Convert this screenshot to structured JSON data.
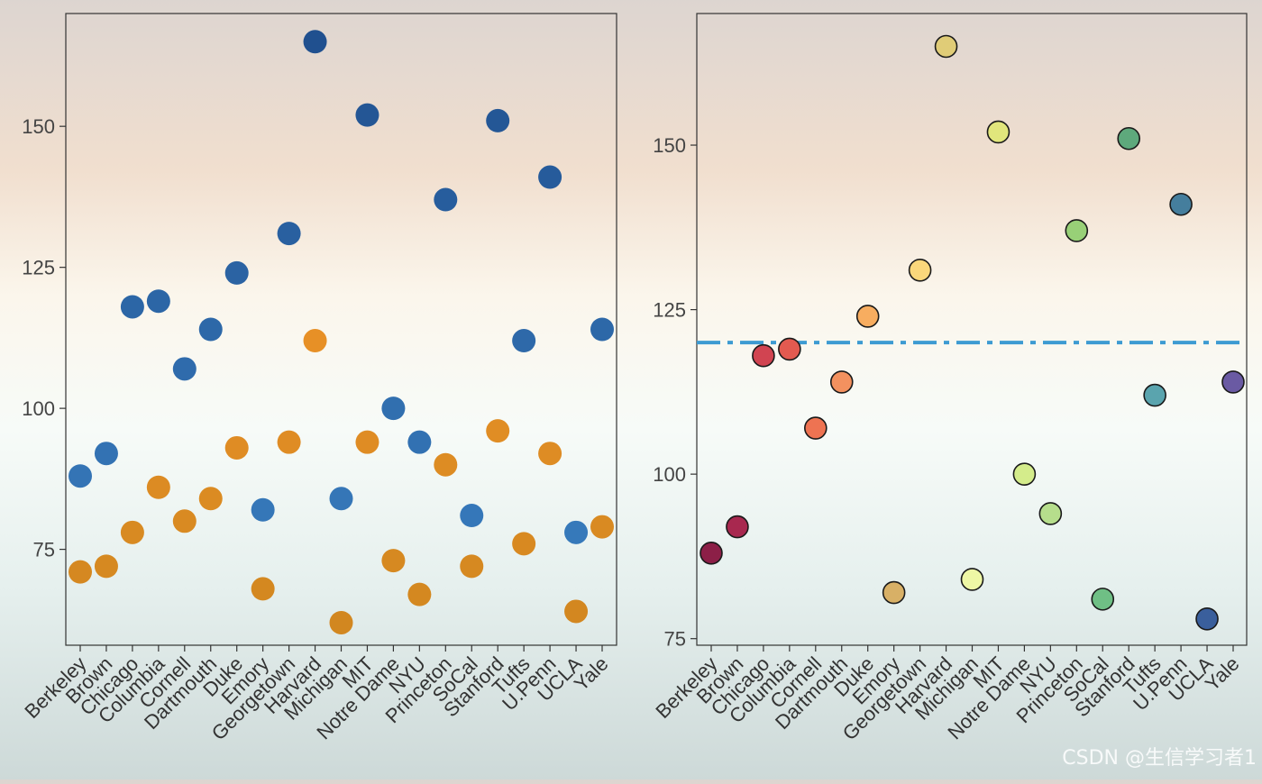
{
  "chart_data": [
    {
      "type": "dumbbell",
      "categories": [
        "Berkeley",
        "Brown",
        "Chicago",
        "Columbia",
        "Cornell",
        "Dartmouth",
        "Duke",
        "Emory",
        "Georgetown",
        "Harvard",
        "Michigan",
        "MIT",
        "Notre Dame",
        "NYU",
        "Princeton",
        "SoCal",
        "Stanford",
        "Tufts",
        "U.Penn",
        "UCLA",
        "Yale"
      ],
      "series": [
        {
          "name": "",
          "color": "#f39a2b",
          "values": [
            71,
            72,
            78,
            86,
            80,
            84,
            93,
            68,
            94,
            112,
            62,
            94,
            73,
            67,
            90,
            72,
            96,
            76,
            92,
            64,
            79
          ]
        },
        {
          "name": "",
          "color": "#3a6fb0",
          "values": [
            88,
            92,
            118,
            119,
            107,
            114,
            124,
            82,
            131,
            165,
            84,
            152,
            100,
            94,
            137,
            81,
            151,
            112,
            141,
            78,
            114
          ]
        }
      ],
      "ylim": [
        58,
        170
      ],
      "yticks": [
        75,
        100,
        125,
        150
      ],
      "ytick_labels": [
        "75",
        "100",
        "125",
        "150"
      ],
      "xlabel": "",
      "ylabel": "",
      "grid": false,
      "legend": "none"
    },
    {
      "type": "lollipop",
      "categories": [
        "Berkeley",
        "Brown",
        "Chicago",
        "Columbia",
        "Cornell",
        "Dartmouth",
        "Duke",
        "Emory",
        "Georgetown",
        "Harvard",
        "Michigan",
        "MIT",
        "Notre Dame",
        "NYU",
        "Princeton",
        "SoCal",
        "Stanford",
        "Tufts",
        "U.Penn",
        "UCLA",
        "Yale"
      ],
      "values": [
        88,
        92,
        118,
        119,
        107,
        114,
        124,
        82,
        131,
        165,
        84,
        152,
        100,
        94,
        137,
        81,
        151,
        112,
        141,
        78,
        114
      ],
      "point_colors": [
        "#8c1f47",
        "#a8284f",
        "#d14451",
        "#e35a50",
        "#ee7352",
        "#f3915f",
        "#f7ad60",
        "#d8b066",
        "#fad77b",
        "#e0cc77",
        "#eef7a5",
        "#e1e67c",
        "#d4ec8b",
        "#b6de8c",
        "#98d077",
        "#6fbf85",
        "#5ea97c",
        "#5aa4ae",
        "#457e9d",
        "#3a5f9c",
        "#6a5aa3"
      ],
      "baseline": 120,
      "baseline_color": "#3d9bd2",
      "stem_color": "#d18a34",
      "ylim": [
        74,
        170
      ],
      "yticks": [
        75,
        100,
        125,
        150
      ],
      "ytick_labels": [
        "75",
        "100",
        "125",
        "150"
      ],
      "xlabel": "",
      "ylabel": "",
      "grid": false,
      "legend": "none"
    }
  ],
  "watermark": "CSDN @生信学习者1"
}
